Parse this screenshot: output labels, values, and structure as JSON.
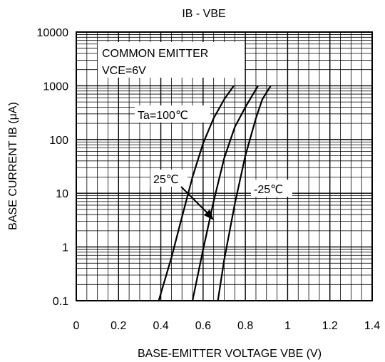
{
  "chart_data": {
    "type": "line",
    "title": "IB - VBE",
    "xlabel": "BASE-EMITTER VOLTAGE  VBE  (V)",
    "ylabel": "BASE CURRENT   IB (μA)",
    "xlim": [
      0,
      1.4
    ],
    "ylim": [
      0.1,
      10000
    ],
    "y_scale": "log",
    "grid": true,
    "x_ticks": [
      "0",
      "0.2",
      "0.4",
      "0.6",
      "0.8",
      "1",
      "1.2",
      "1.4"
    ],
    "y_ticks": [
      "0.1",
      "1",
      "10",
      "100",
      "1000",
      "10000"
    ],
    "series": [
      {
        "name": "Ta=100℃",
        "x": [
          0.39,
          0.45,
          0.5,
          0.55,
          0.6,
          0.65,
          0.7,
          0.745
        ],
        "y": [
          0.1,
          0.63,
          3.6,
          20,
          85,
          250,
          560,
          1000
        ]
      },
      {
        "name": "25℃",
        "x": [
          0.55,
          0.6,
          0.65,
          0.7,
          0.75,
          0.8,
          0.86
        ],
        "y": [
          0.1,
          0.9,
          7.1,
          45,
          170,
          400,
          1000
        ]
      },
      {
        "name": "-25℃",
        "x": [
          0.67,
          0.7,
          0.75,
          0.8,
          0.85,
          0.88,
          0.92
        ],
        "y": [
          0.1,
          0.58,
          6.3,
          50,
          250,
          560,
          1000
        ]
      }
    ],
    "annotations": {
      "box_line1": "COMMON EMITTER",
      "box_line2": "VCE=6V",
      "label_100": "Ta=100℃",
      "label_25": "25℃",
      "label_m25": "-25℃"
    }
  }
}
